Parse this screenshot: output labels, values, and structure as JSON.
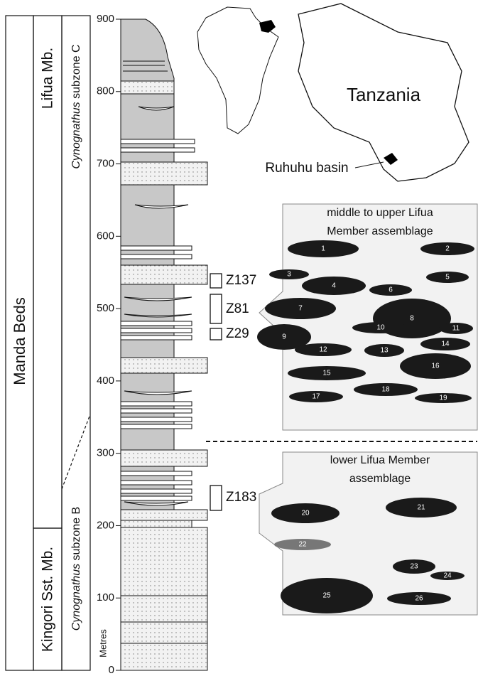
{
  "columns": {
    "group": "Manda Beds",
    "members": [
      "Lifua Mb.",
      "Kingori Sst. Mb."
    ],
    "subzones": [
      {
        "italic": "Cynognathus",
        "rest": " subzone C"
      },
      {
        "italic": "Cynognathus",
        "rest": " subzone B"
      }
    ]
  },
  "axis": {
    "label": "Metres",
    "ticks": [
      0,
      100,
      200,
      300,
      400,
      500,
      600,
      700,
      800,
      900
    ]
  },
  "map": {
    "country": "Tanzania",
    "basin": "Ruhuhu basin"
  },
  "samples": [
    "Z137",
    "Z81",
    "Z29",
    "Z183"
  ],
  "assemblages": [
    {
      "title": [
        "middle to upper Lifua",
        "Member assemblage"
      ],
      "taxa": [
        "1",
        "2",
        "3",
        "4",
        "5",
        "6",
        "7",
        "8",
        "9",
        "10",
        "11",
        "12",
        "13",
        "14",
        "15",
        "16",
        "17",
        "18",
        "19"
      ]
    },
    {
      "title": [
        "lower Lifua Member",
        "assemblage"
      ],
      "taxa": [
        "20",
        "21",
        "22",
        "23",
        "24",
        "25",
        "26"
      ]
    }
  ]
}
